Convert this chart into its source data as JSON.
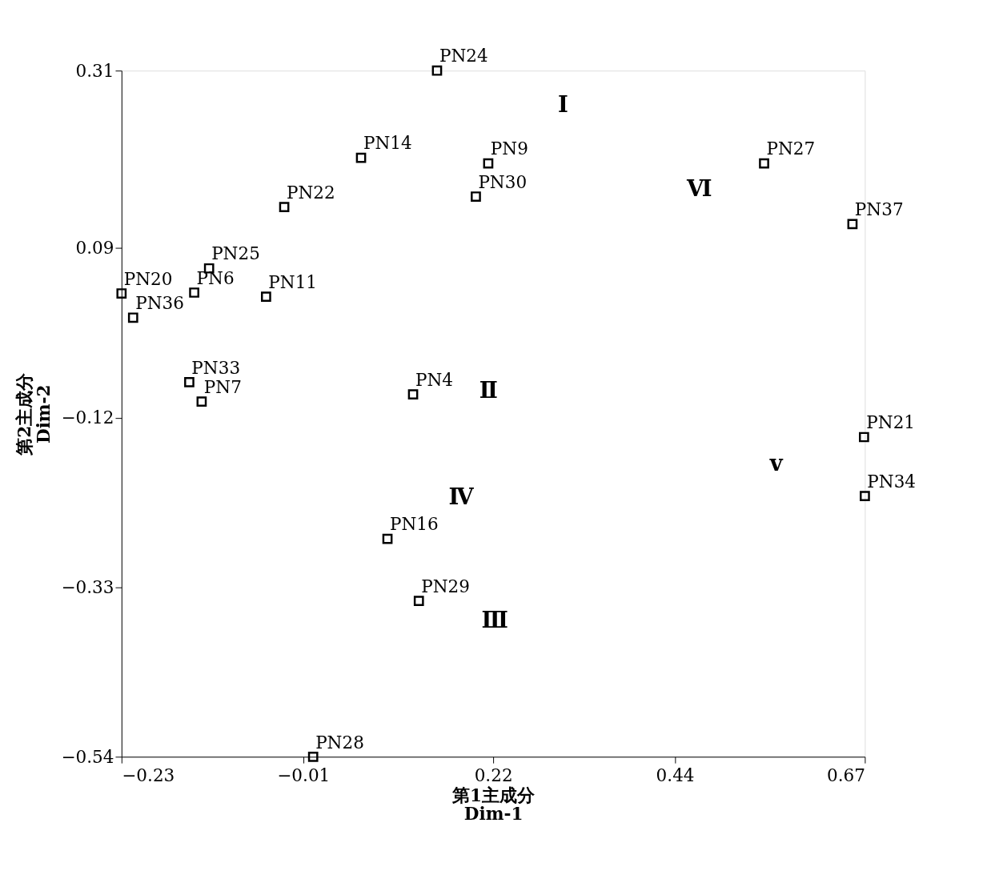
{
  "chart_data": {
    "type": "scatter",
    "xlabel": "第1主成分\nDim-1",
    "ylabel": "第2主成分\nDim-2",
    "xlim": [
      -0.23,
      0.67
    ],
    "xticks": [
      -0.23,
      -0.01,
      0.22,
      0.44,
      0.67
    ],
    "ylim": [
      -0.54,
      0.31
    ],
    "yticks": [
      -0.54,
      -0.33,
      -0.12,
      0.09,
      0.31
    ],
    "grid": false,
    "marker": "square",
    "series": [
      {
        "color": "#000000",
        "x": [
          0.152,
          0.06,
          0.214,
          0.199,
          -0.033,
          -0.124,
          -0.23,
          -0.142,
          -0.055,
          -0.216,
          -0.148,
          -0.133,
          0.123,
          0.092,
          0.13,
          0.002,
          0.548,
          0.655,
          0.669,
          0.67
        ],
        "values": [
          0.31,
          0.202,
          0.195,
          0.154,
          0.141,
          0.065,
          0.034,
          0.035,
          0.03,
          0.004,
          -0.076,
          -0.1,
          -0.091,
          -0.27,
          -0.347,
          -0.54,
          0.195,
          0.12,
          -0.144,
          -0.217
        ],
        "value_labels": [
          "PN24",
          "PN14",
          "PN9",
          "PN30",
          "PN22",
          "PN25",
          "PN20",
          "PN6",
          "PN11",
          "PN36",
          "PN33",
          "PN7",
          "PN4",
          "PN16",
          "PN29",
          "PN28",
          "PN27",
          "PN37",
          "PN21",
          "PN34"
        ]
      }
    ],
    "annotations": [
      "Ⅰ",
      "Ⅱ",
      "Ⅲ",
      "Ⅳ",
      "v",
      "Ⅵ"
    ]
  }
}
